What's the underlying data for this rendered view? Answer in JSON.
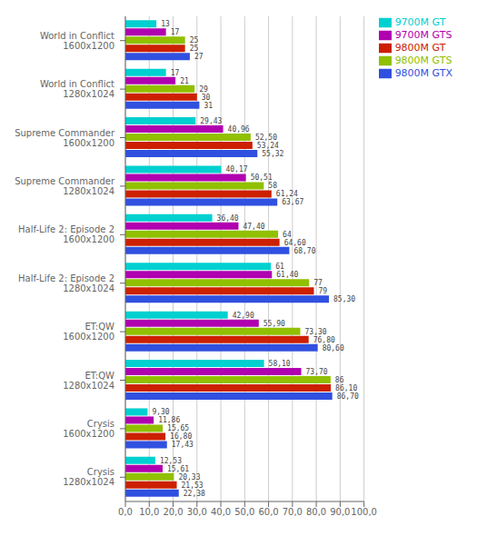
{
  "chart_data": {
    "type": "bar",
    "orientation": "horizontal",
    "grid": true,
    "data_labels": true,
    "legend": "upper right",
    "categories": [
      "World in Conflict\n1600x1200",
      "World in Conflict\n1280x1024",
      "Supreme Commander\n1600x1200",
      "Supreme Commander\n1280x1024",
      "Half-Life 2: Episode 2\n1600x1200",
      "Half-Life 2: Episode 2\n1280x1024",
      "ET:QW\n1600x1200",
      "ET:QW\n1280x1024",
      "Crysis\n1600x1200",
      "Crysis\n1280x1024"
    ],
    "series": [
      {
        "name": "9700M GT",
        "color": "#00d0d0",
        "values": [
          13,
          17,
          29.43,
          40.17,
          36.4,
          61.0,
          42.9,
          58.1,
          9.3,
          12.53
        ],
        "value_labels": [
          "13",
          "17",
          "29,43",
          "40,17",
          "36,40",
          "61",
          "42,90",
          "58,10",
          "9,30",
          "12,53"
        ]
      },
      {
        "name": "9700M GTS",
        "color": "#b000b0",
        "values": [
          17,
          21,
          40.96,
          50.51,
          47.4,
          61.4,
          55.9,
          73.7,
          11.86,
          15.61
        ],
        "value_labels": [
          "17",
          "21",
          "40,96",
          "50,51",
          "47,40",
          "61,40",
          "55,90",
          "73,70",
          "11,86",
          "15,61"
        ]
      },
      {
        "name": "9800M GTS",
        "color": "#90c000",
        "values": [
          25,
          29,
          52.5,
          58.0,
          64.0,
          77.0,
          73.3,
          86.0,
          15.65,
          20.33
        ],
        "value_labels": [
          "25",
          "29",
          "52,50",
          "58",
          "64",
          "77",
          "73,30",
          "86",
          "15,65",
          "20,33"
        ]
      },
      {
        "name": "9800M GT",
        "color": "#cc2000",
        "values": [
          25,
          30,
          53.24,
          61.24,
          64.6,
          79.0,
          76.8,
          86.1,
          16.8,
          21.53
        ],
        "value_labels": [
          "25",
          "30",
          "53,24",
          "61,24",
          "64,60",
          "79",
          "76,80",
          "86,10",
          "16,80",
          "21,53"
        ]
      },
      {
        "name": "9800M GTX",
        "color": "#3050e0",
        "values": [
          27,
          31,
          55.32,
          63.67,
          68.7,
          85.3,
          80.6,
          86.7,
          17.43,
          22.38
        ],
        "value_labels": [
          "27",
          "31",
          "55,32",
          "63,67",
          "68,70",
          "85,30",
          "80,60",
          "86,70",
          "17,43",
          "22,38"
        ]
      }
    ],
    "xlim": [
      0,
      100
    ],
    "xticks": [
      {
        "value": 0,
        "label": "0,0"
      },
      {
        "value": 10,
        "label": "10,0"
      },
      {
        "value": 20,
        "label": "20,0"
      },
      {
        "value": 30,
        "label": "30,0"
      },
      {
        "value": 40,
        "label": "40,0"
      },
      {
        "value": 50,
        "label": "50,0"
      },
      {
        "value": 60,
        "label": "60,0"
      },
      {
        "value": 70,
        "label": "70,0"
      },
      {
        "value": 80,
        "label": "80,0"
      },
      {
        "value": 90,
        "label": "90,0"
      },
      {
        "value": 100,
        "label": "100,0"
      }
    ]
  }
}
